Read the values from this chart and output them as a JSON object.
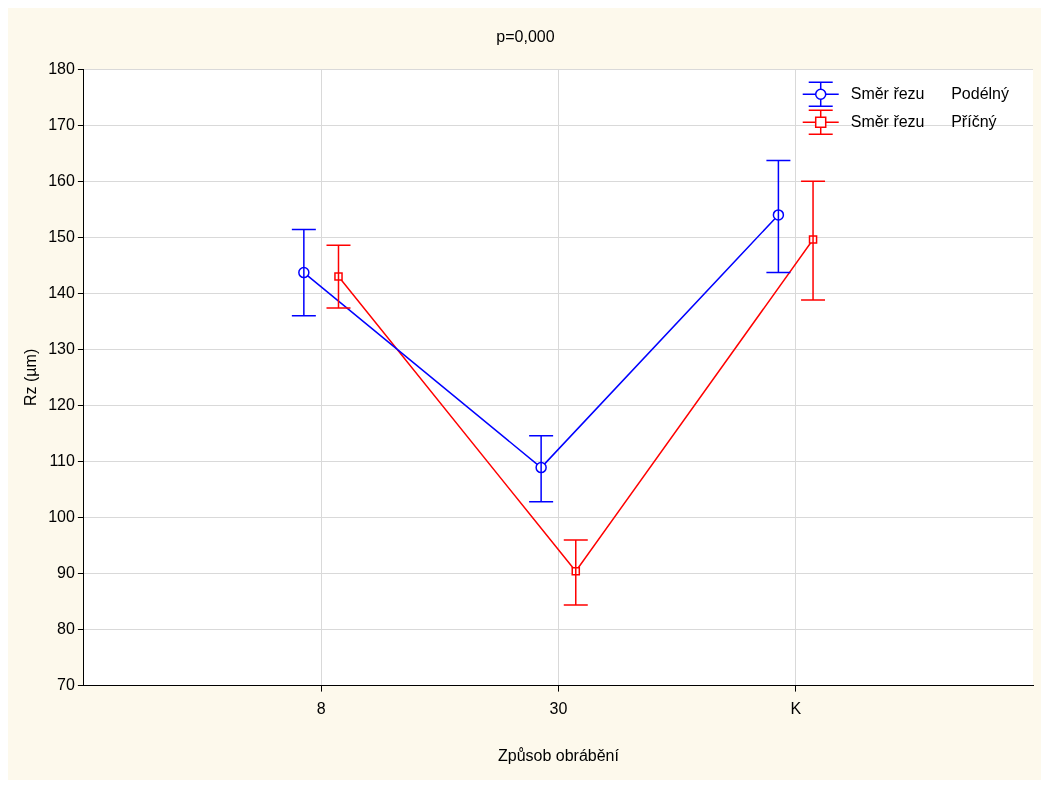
{
  "chart_data": {
    "type": "line",
    "title": "p=0,000",
    "xlabel": "Způsob obrábění",
    "ylabel": "Rz (µm)",
    "categories": [
      "8",
      "30",
      "K"
    ],
    "series": [
      {
        "name": "Směr řezu      Podélný",
        "color": "#0000ff",
        "marker": "circle",
        "values": [
          143.7,
          108.9,
          154.0
        ],
        "errors": [
          [
            136.0,
            151.4
          ],
          [
            102.8,
            114.6
          ],
          [
            143.7,
            163.7
          ]
        ]
      },
      {
        "name": "Směr řezu      Příčný",
        "color": "#ff0000",
        "marker": "square",
        "values": [
          143.0,
          90.4,
          149.6
        ],
        "errors": [
          [
            137.4,
            148.6
          ],
          [
            84.4,
            96.0
          ],
          [
            138.8,
            160.0
          ]
        ]
      }
    ],
    "ylim": [
      70,
      180
    ],
    "yticks": [
      70,
      80,
      90,
      100,
      110,
      120,
      130,
      140,
      150,
      160,
      170,
      180
    ],
    "grid": true,
    "legend": "top right"
  }
}
